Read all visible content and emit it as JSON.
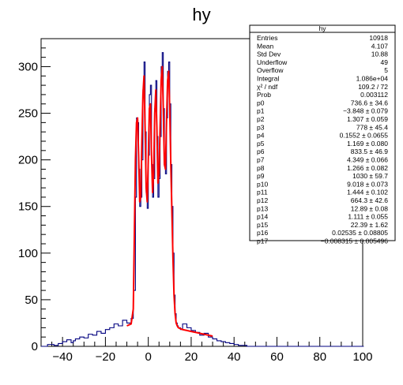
{
  "chart_data": {
    "type": "histogram",
    "title": "hy",
    "xlabel": "",
    "ylabel": "",
    "xlim": [
      -50,
      100
    ],
    "ylim": [
      0,
      330
    ],
    "xticks": [
      -40,
      -20,
      0,
      20,
      40,
      60,
      80,
      100
    ],
    "yticks": [
      0,
      50,
      100,
      150,
      200,
      250,
      300
    ],
    "xtick_labels": [
      "−40",
      "−20",
      "0",
      "20",
      "40",
      "60",
      "80",
      "100"
    ],
    "ytick_labels": [
      "0",
      "50",
      "100",
      "150",
      "200",
      "250",
      "300"
    ],
    "hist_color": "#00007f",
    "fit_color": "#ff0000",
    "series": [
      {
        "type": "step",
        "bin_width": 0.5,
        "x": [
          -50,
          -47,
          -44,
          -42,
          -40,
          -38,
          -36,
          -35,
          -34,
          -32,
          -30,
          -28,
          -26,
          -24,
          -22,
          -20,
          -18,
          -16,
          -14,
          -12,
          -10,
          -8,
          -7,
          -6,
          -5.5,
          -5,
          -4.5,
          -4,
          -3.5,
          -3,
          -2.5,
          -2,
          -1.5,
          -1,
          -0.5,
          0,
          0.5,
          1,
          1.5,
          2,
          2.5,
          3,
          3.5,
          4,
          4.5,
          5,
          5.5,
          6,
          6.5,
          7,
          7.5,
          8,
          8.5,
          9,
          9.5,
          10,
          10.5,
          11,
          11.5,
          12,
          12.5,
          13,
          13.5,
          14,
          15,
          16,
          18,
          20,
          22,
          24,
          26,
          28,
          30,
          32,
          34,
          36,
          38,
          40,
          42,
          44,
          46,
          48,
          50,
          100
        ],
        "y": [
          0,
          2,
          1,
          3,
          5,
          7,
          4,
          6,
          8,
          10,
          9,
          13,
          12,
          16,
          14,
          18,
          20,
          24,
          22,
          28,
          25,
          30,
          60,
          160,
          245,
          240,
          190,
          150,
          160,
          200,
          275,
          305,
          230,
          165,
          148,
          205,
          270,
          280,
          195,
          160,
          180,
          255,
          285,
          225,
          160,
          180,
          225,
          300,
          315,
          255,
          200,
          185,
          245,
          295,
          305,
          260,
          195,
          150,
          100,
          55,
          35,
          25,
          22,
          20,
          18,
          24,
          20,
          17,
          15,
          12,
          14,
          10,
          8,
          6,
          5,
          4,
          3,
          2,
          1,
          1,
          0,
          0,
          0,
          0
        ]
      },
      {
        "type": "fit",
        "x": [
          -10,
          -8,
          -7,
          -6.5,
          -6,
          -5.5,
          -5,
          -4.5,
          -4,
          -3.5,
          -3,
          -2.5,
          -2,
          -1.5,
          -1,
          -0.5,
          0,
          0.5,
          1,
          1.5,
          2,
          2.5,
          3,
          3.5,
          4,
          4.5,
          5,
          5.5,
          6,
          6.5,
          7,
          7.5,
          8,
          8.5,
          9,
          9.5,
          10,
          10.5,
          11,
          11.5,
          12,
          12.5,
          13,
          13.5,
          14,
          15,
          16,
          18,
          20,
          22,
          24,
          26,
          28,
          30
        ],
        "y": [
          22,
          24,
          40,
          120,
          200,
          240,
          245,
          205,
          155,
          160,
          220,
          270,
          290,
          235,
          170,
          155,
          200,
          255,
          260,
          205,
          165,
          185,
          250,
          275,
          235,
          175,
          185,
          235,
          285,
          300,
          255,
          195,
          190,
          240,
          285,
          295,
          255,
          195,
          145,
          95,
          55,
          35,
          25,
          22,
          20,
          19,
          18,
          17,
          16,
          15,
          14,
          13,
          12,
          11
        ]
      }
    ],
    "stats_box": {
      "title": "hy",
      "rows": [
        {
          "label": "Entries",
          "value": "10918"
        },
        {
          "label": "Mean",
          "value": "4.107"
        },
        {
          "label": "Std Dev",
          "value": "10.88"
        },
        {
          "label": "Underflow",
          "value": "49"
        },
        {
          "label": "Overflow",
          "value": "5"
        },
        {
          "label": "Integral",
          "value": "1.086e+04"
        },
        {
          "label": "χ² / ndf",
          "value": "109.2 / 72"
        },
        {
          "label": "Prob",
          "value": "0.003112"
        },
        {
          "label": "p0",
          "value": "736.6 ± 34.6"
        },
        {
          "label": "p1",
          "value": "−3.848 ± 0.079"
        },
        {
          "label": "p2",
          "value": "1.307 ± 0.059"
        },
        {
          "label": "p3",
          "value": "778 ± 45.4"
        },
        {
          "label": "p4",
          "value": "0.1552 ± 0.0655"
        },
        {
          "label": "p5",
          "value": "1.169 ± 0.080"
        },
        {
          "label": "p6",
          "value": "833.5 ± 46.9"
        },
        {
          "label": "p7",
          "value": "4.349 ± 0.066"
        },
        {
          "label": "p8",
          "value": "1.266 ± 0.082"
        },
        {
          "label": "p9",
          "value": "1030 ± 59.7"
        },
        {
          "label": "p10",
          "value": "9.018 ± 0.073"
        },
        {
          "label": "p11",
          "value": "1.444 ± 0.102"
        },
        {
          "label": "p12",
          "value": "664.3 ± 42.6"
        },
        {
          "label": "p13",
          "value": "12.89 ± 0.08"
        },
        {
          "label": "p14",
          "value": "1.111 ± 0.055"
        },
        {
          "label": "p15",
          "value": "22.39 ± 1.62"
        },
        {
          "label": "p16",
          "value": "0.02535 ± 0.08805"
        },
        {
          "label": "p17",
          "value": "−0.008315 ± 0.005496"
        }
      ]
    }
  }
}
